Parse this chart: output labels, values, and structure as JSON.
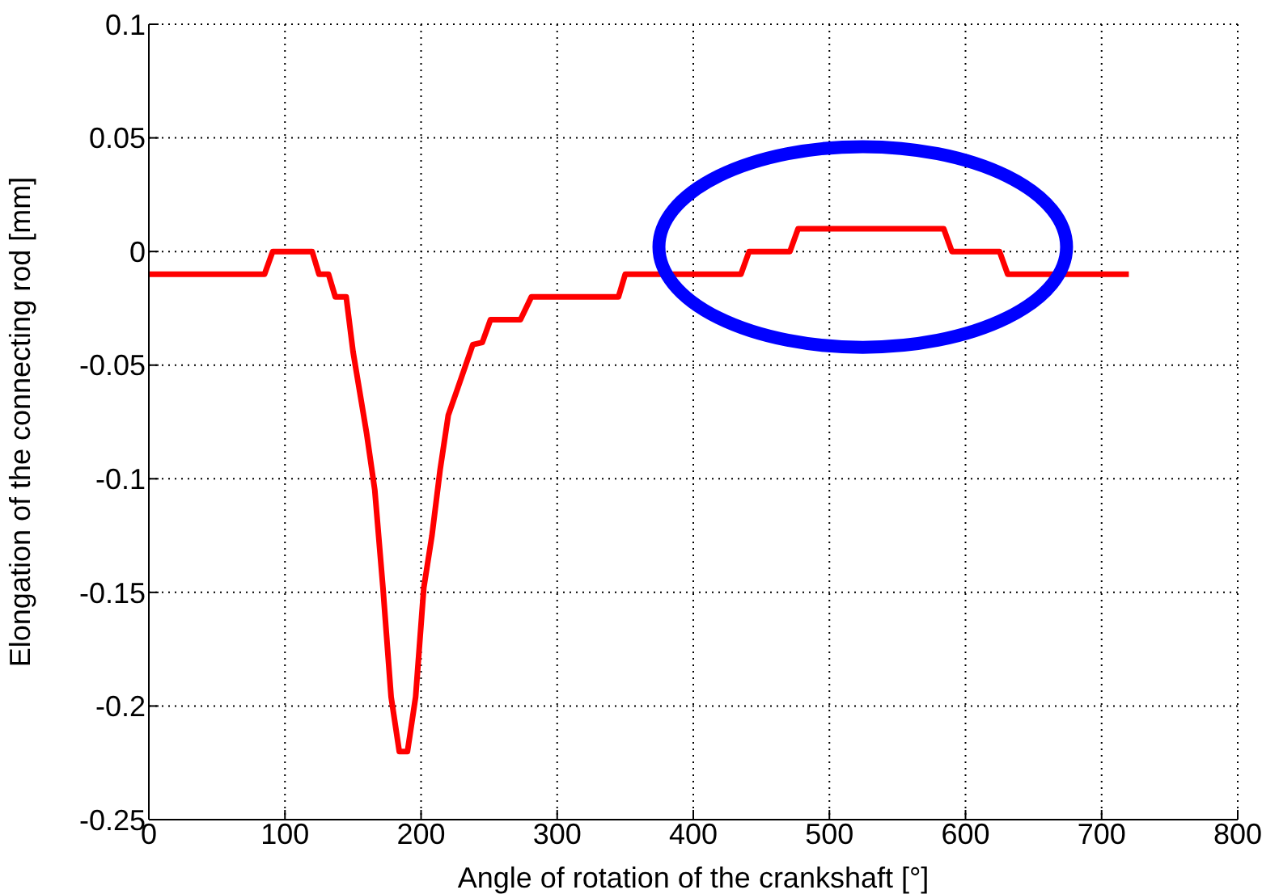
{
  "chart_data": {
    "type": "line",
    "xlabel": "Angle of rotation of the crankshaft [°]",
    "ylabel": "Elongation of the connecting rod [mm]",
    "xlim": [
      0,
      800
    ],
    "xticks": [
      0,
      100,
      200,
      300,
      400,
      500,
      600,
      700,
      800
    ],
    "ylim": [
      -0.25,
      0.1
    ],
    "yticks": [
      -0.25,
      -0.2,
      -0.15,
      -0.1,
      -0.05,
      0,
      0.05,
      0.1
    ],
    "grid": true,
    "line_style": "solid",
    "marker": "none",
    "series": [
      {
        "color": "#ff0000",
        "x": [
          0,
          85,
          91,
          120,
          125,
          132,
          137,
          145,
          150,
          160,
          166,
          172,
          178,
          184,
          190,
          196,
          202,
          208,
          214,
          220,
          227,
          238,
          245,
          251,
          273,
          281,
          345,
          350,
          435,
          441,
          471,
          477,
          584,
          590,
          625,
          631,
          720
        ],
        "values": [
          -0.01,
          -0.01,
          0,
          0,
          -0.01,
          -0.01,
          -0.02,
          -0.02,
          -0.044,
          -0.08,
          -0.105,
          -0.148,
          -0.196,
          -0.22,
          -0.22,
          -0.196,
          -0.148,
          -0.125,
          -0.096,
          -0.072,
          -0.06,
          -0.041,
          -0.04,
          -0.03,
          -0.03,
          -0.02,
          -0.02,
          -0.01,
          -0.01,
          0,
          0,
          0.01,
          0.01,
          0,
          0,
          -0.01,
          -0.01
        ]
      }
    ]
  }
}
